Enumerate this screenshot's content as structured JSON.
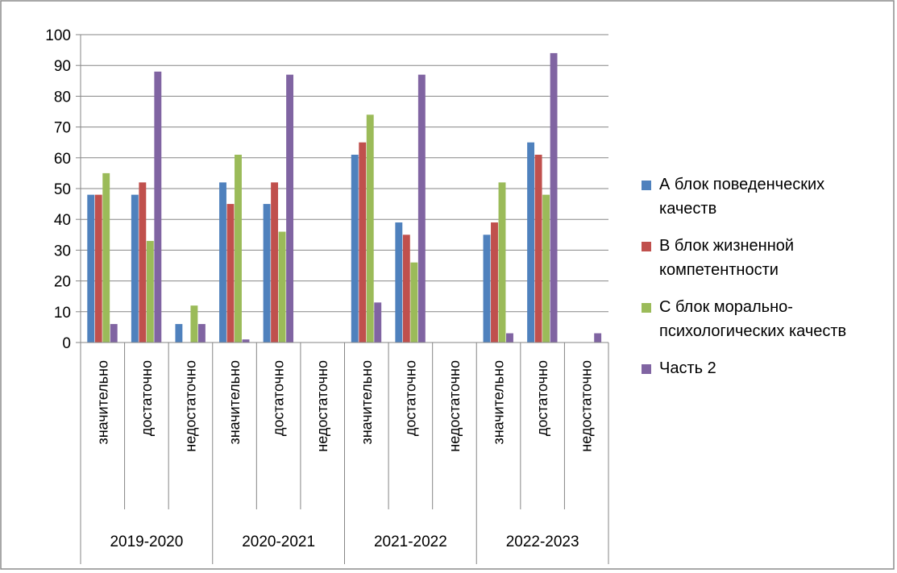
{
  "chart_data": {
    "type": "bar",
    "title": "",
    "xlabel": "",
    "ylabel": "",
    "ylim": [
      0,
      100
    ],
    "yticks": [
      0,
      10,
      20,
      30,
      40,
      50,
      60,
      70,
      80,
      90,
      100
    ],
    "grid": true,
    "legend_position": "right",
    "groups": [
      "2019-2020",
      "2020-2021",
      "2021-2022",
      "2022-2023"
    ],
    "subcategories": [
      "значительно",
      "достаточно",
      "недостаточно"
    ],
    "series": [
      {
        "name": "А блок поведенческих качеств",
        "color": "#4F81BD",
        "values": [
          48,
          48,
          6,
          52,
          45,
          0,
          61,
          39,
          0,
          35,
          65,
          0
        ]
      },
      {
        "name": "В блок жизненной компетентности",
        "color": "#C0504D",
        "values": [
          48,
          52,
          0,
          45,
          52,
          0,
          65,
          35,
          0,
          39,
          61,
          0
        ]
      },
      {
        "name": "С блок морально-психологических качеств",
        "color": "#9BBB59",
        "values": [
          55,
          33,
          12,
          61,
          36,
          0,
          74,
          26,
          0,
          52,
          48,
          0
        ]
      },
      {
        "name": "Часть 2",
        "color": "#8064A2",
        "values": [
          6,
          88,
          6,
          1,
          87,
          0,
          13,
          87,
          0,
          3,
          94,
          3
        ]
      }
    ]
  },
  "legend_lines": [
    [
      "А блок поведенческих",
      "качеств"
    ],
    [
      "В блок жизненной",
      "компетентности"
    ],
    [
      "С блок морально-",
      "психологических качеств"
    ],
    [
      "Часть 2"
    ]
  ]
}
